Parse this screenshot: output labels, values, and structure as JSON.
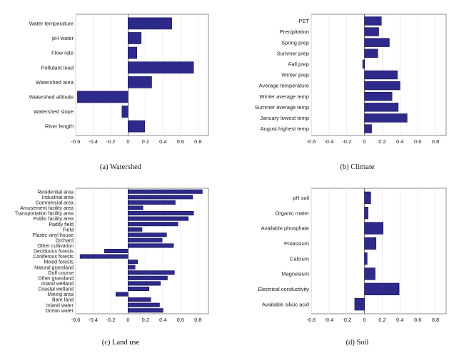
{
  "style": {
    "bar_color": "#2e2a8c"
  },
  "chart_data": [
    {
      "type": "bar",
      "orientation": "horizontal",
      "caption": "(a)  Watershed",
      "categories": [
        "Water temperature",
        "pH water",
        "Flow rate",
        "Pollutant load",
        "Watershed area",
        "Watershed altitude",
        "Watershed slope",
        "River length"
      ],
      "values": [
        0.5,
        0.15,
        0.1,
        0.75,
        0.27,
        -0.58,
        -0.07,
        0.19
      ],
      "xlim": [
        -0.6,
        0.9
      ],
      "xticks": [
        "-0.6",
        "-0.4",
        "-0.2",
        "0",
        "0.2",
        "0.4",
        "0.6",
        "0.8"
      ],
      "grid": true
    },
    {
      "type": "bar",
      "orientation": "horizontal",
      "caption": "(b)  Climate",
      "categories": [
        "PET",
        "Precipitation",
        "Spring prep",
        "Summer prep",
        "Fall prep",
        "Winter prep",
        "Average temperature",
        "Winter average temp",
        "Summer average temp",
        "January lowest temp",
        "August highest temp"
      ],
      "values": [
        0.19,
        0.16,
        0.28,
        0.15,
        -0.02,
        0.37,
        0.4,
        0.31,
        0.38,
        0.48,
        0.08
      ],
      "xlim": [
        -0.6,
        0.9
      ],
      "xticks": [
        "-0.6",
        "-0.4",
        "-0.2",
        "0",
        "0.2",
        "0.4",
        "0.6",
        "0.8"
      ],
      "grid": true
    },
    {
      "type": "bar",
      "orientation": "horizontal",
      "caption": "(c)  Land use",
      "categories": [
        "Residential area",
        "Industrial area",
        "Commercial area",
        "Amusement facility area",
        "Transportation facility area",
        "Public facility area",
        "Paddy field",
        "Field",
        "Plastic vinyl house",
        "Orchard",
        "Other cultivation",
        "Deciduous forests",
        "Coniferous forests",
        "Mixed forests",
        "Natural grassland",
        "Golf course",
        "Other grassland",
        "Inland wetland",
        "Coastal wetland",
        "Mining area",
        "Bare land",
        "Inland water",
        "Ocean water"
      ],
      "values": [
        0.85,
        0.74,
        0.54,
        0.17,
        0.75,
        0.69,
        0.57,
        0.16,
        0.44,
        0.39,
        0.52,
        -0.27,
        -0.55,
        0.11,
        0.08,
        0.53,
        0.45,
        0.37,
        0.24,
        -0.14,
        0.26,
        0.36,
        0.4
      ],
      "xlim": [
        -0.6,
        0.9
      ],
      "xticks": [
        "-0.6",
        "-0.4",
        "-0.2",
        "0",
        "0.2",
        "0.4",
        "0.6",
        "0.8"
      ],
      "grid": true
    },
    {
      "type": "bar",
      "orientation": "horizontal",
      "caption": "(d)  Soil",
      "categories": [
        "pH soil",
        "Organic mater",
        "Available phosphate",
        "Potassium",
        "Calcium",
        "Magnesium",
        "Electrical conductivity",
        "Available silicic acid"
      ],
      "values": [
        0.07,
        0.04,
        0.21,
        0.13,
        0.03,
        0.12,
        0.39,
        -0.11
      ],
      "xlim": [
        -0.6,
        0.9
      ],
      "xticks": [
        "-0.6",
        "-0.4",
        "-0.2",
        "0",
        "0.2",
        "0.4",
        "0.6",
        "0.8"
      ],
      "grid": true
    }
  ]
}
